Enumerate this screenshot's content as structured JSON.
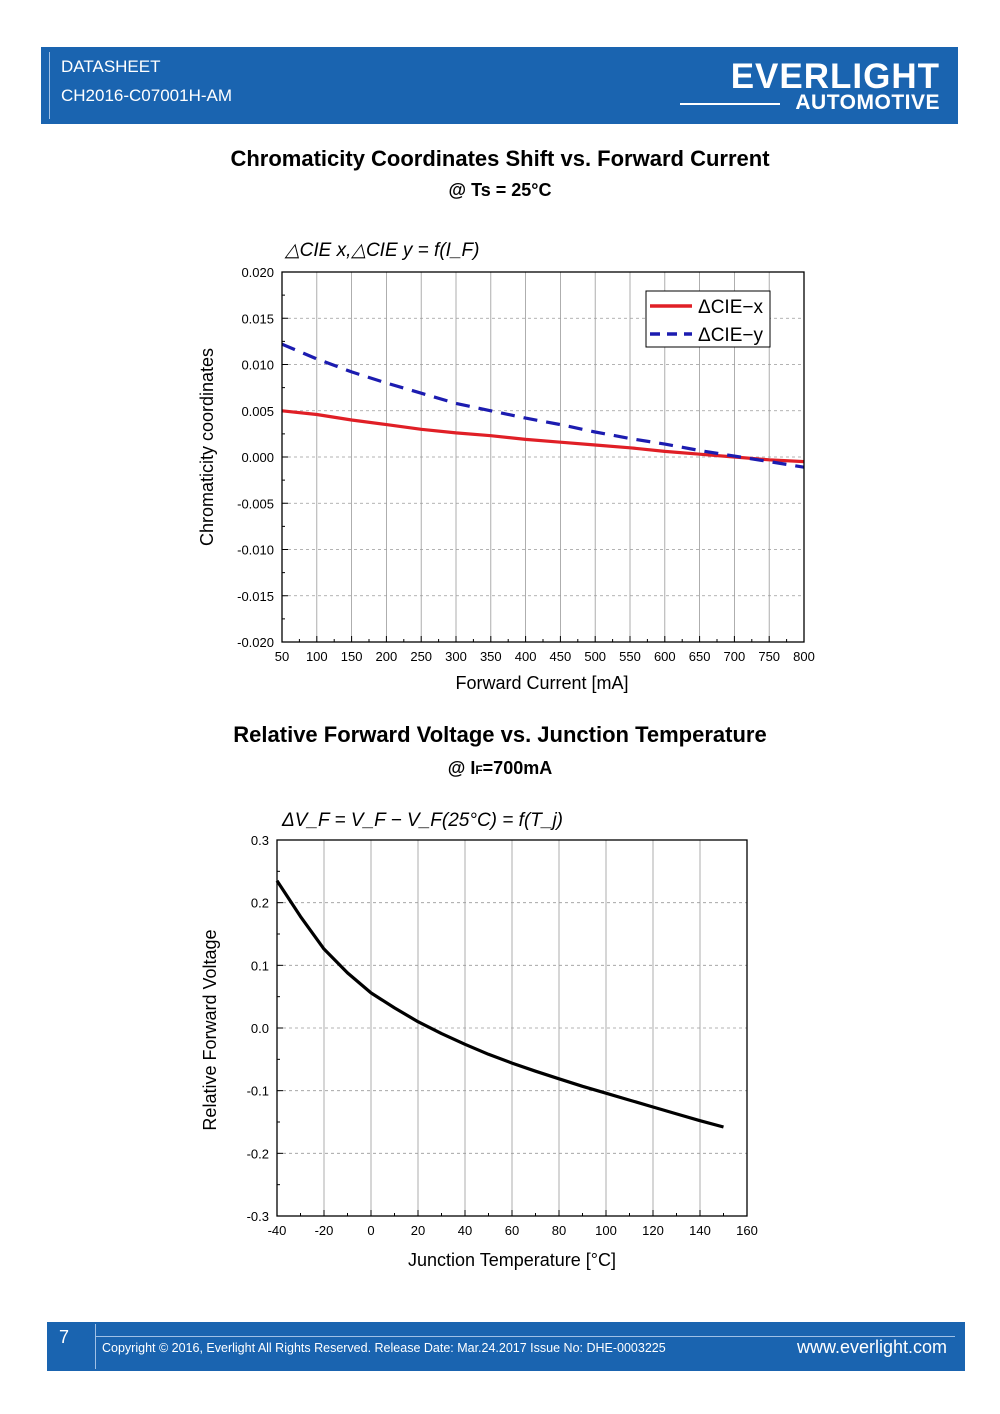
{
  "header": {
    "doc_type": "DATASHEET",
    "part_number": "CH2016-C07001H-AM",
    "brand_main": "EVERLIGHT",
    "brand_sub": "AUTOMOTIVE"
  },
  "section1": {
    "title": "Chromaticity Coordinates Shift vs. Forward Current",
    "subtitle": "@ Ts = 25°C"
  },
  "section2": {
    "title": "Relative Forward Voltage vs. Junction Temperature",
    "subtitle_prefix": "@ I",
    "subtitle_sub": "F",
    "subtitle_suffix": "=700mA"
  },
  "chart_data": [
    {
      "type": "line",
      "formula": "△CIE x,△CIE y = f(I_F)",
      "xlabel": "Forward Current [mA]",
      "ylabel": "Chromaticity coordinates",
      "xlim": [
        50,
        800
      ],
      "ylim": [
        -0.02,
        0.02
      ],
      "xticks": [
        "50",
        "100",
        "150",
        "200",
        "250",
        "300",
        "350",
        "400",
        "450",
        "500",
        "550",
        "600",
        "650",
        "700",
        "750",
        "800"
      ],
      "yticks": [
        "0.020",
        "0.015",
        "0.010",
        "0.005",
        "0.000",
        "-0.005",
        "-0.010",
        "-0.015",
        "-0.020"
      ],
      "legend_position": "top-right",
      "series": [
        {
          "name": "ΔCIE−x",
          "color": "#e01f26",
          "style": "solid",
          "x": [
            50,
            100,
            150,
            200,
            250,
            300,
            350,
            400,
            450,
            500,
            550,
            600,
            650,
            700,
            750,
            800
          ],
          "y": [
            0.005,
            0.0046,
            0.004,
            0.0035,
            0.003,
            0.0026,
            0.0023,
            0.0019,
            0.0016,
            0.0013,
            0.001,
            0.0006,
            0.0003,
            0.0,
            -0.0003,
            -0.0005
          ]
        },
        {
          "name": "ΔCIE−y",
          "color": "#1c1cb0",
          "style": "dashed",
          "x": [
            50,
            100,
            150,
            200,
            250,
            300,
            350,
            400,
            450,
            500,
            550,
            600,
            650,
            700,
            750,
            800
          ],
          "y": [
            0.0122,
            0.0106,
            0.0092,
            0.008,
            0.0069,
            0.0058,
            0.005,
            0.0042,
            0.0035,
            0.0027,
            0.002,
            0.0014,
            0.0007,
            0.0001,
            -0.0005,
            -0.0011
          ]
        }
      ]
    },
    {
      "type": "line",
      "formula": "ΔV_F = V_F − V_F(25°C) = f(T_j)",
      "xlabel": "Junction Temperature [°C]",
      "ylabel": "Relative Forward Voltage",
      "xlim": [
        -40,
        160
      ],
      "ylim": [
        -0.3,
        0.3
      ],
      "xticks": [
        "-40",
        "-20",
        "0",
        "20",
        "40",
        "60",
        "80",
        "100",
        "120",
        "140",
        "160"
      ],
      "yticks": [
        "0.3",
        "0.2",
        "0.1",
        "0.0",
        "-0.1",
        "-0.2",
        "-0.3"
      ],
      "series": [
        {
          "name": "ΔVF",
          "color": "#000000",
          "style": "solid",
          "x": [
            -40,
            -30,
            -20,
            -10,
            0,
            10,
            20,
            30,
            40,
            50,
            60,
            70,
            80,
            90,
            100,
            110,
            120,
            130,
            140,
            150
          ],
          "y": [
            0.235,
            0.178,
            0.126,
            0.088,
            0.056,
            0.032,
            0.01,
            -0.009,
            -0.026,
            -0.042,
            -0.056,
            -0.069,
            -0.081,
            -0.093,
            -0.104,
            -0.115,
            -0.126,
            -0.137,
            -0.148,
            -0.158
          ]
        }
      ]
    }
  ],
  "footer": {
    "page": "7",
    "copyright": "Copyright © 2016, Everlight All Rights Reserved. Release Date: Mar.24.2017   Issue No: DHE-0003225",
    "website": "www.everlight.com"
  }
}
